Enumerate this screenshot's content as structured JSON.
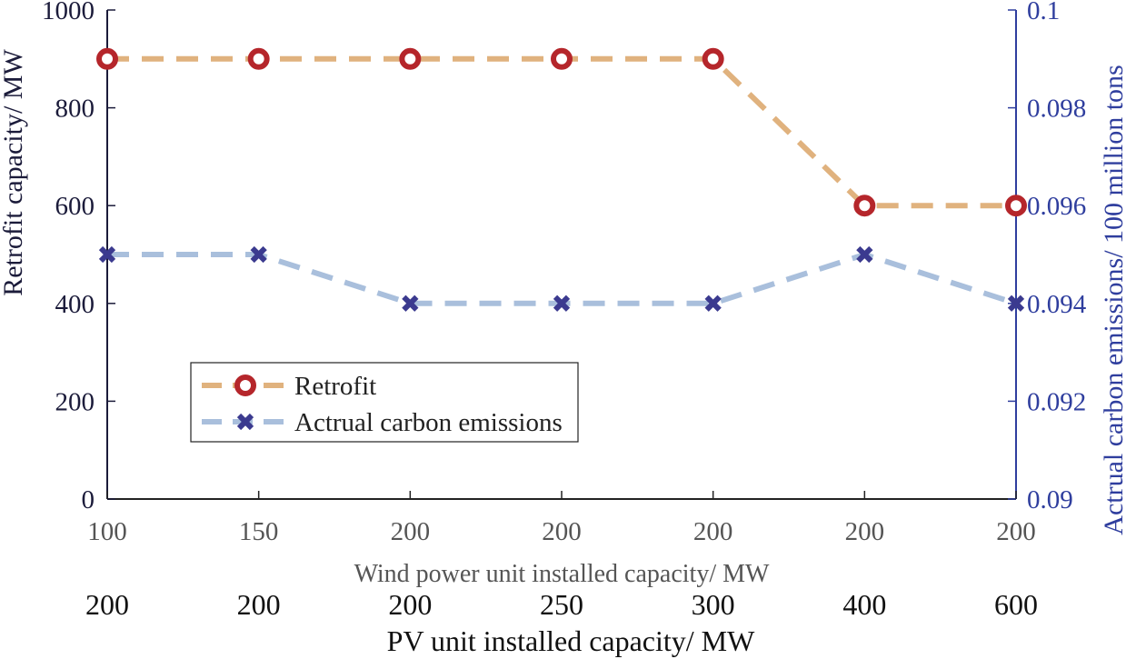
{
  "chart_data": {
    "type": "line",
    "categories_index": [
      1,
      2,
      3,
      4,
      5,
      6,
      7
    ],
    "x_axis_primary": {
      "label": "Wind power unit installed capacity/ MW",
      "ticks": [
        "100",
        "150",
        "200",
        "200",
        "200",
        "200",
        "200"
      ]
    },
    "x_axis_secondary": {
      "label": "PV unit installed capacity/ MW",
      "ticks": [
        "200",
        "200",
        "200",
        "250",
        "300",
        "400",
        "600"
      ]
    },
    "y_axis_left": {
      "label": "Retrofit capacity/ MW",
      "range": [
        0,
        1000
      ],
      "ticks": [
        "0",
        "200",
        "400",
        "600",
        "800",
        "1000"
      ],
      "tick_values": [
        0,
        200,
        400,
        600,
        800,
        1000
      ]
    },
    "y_axis_right": {
      "label": "Actrual carbon emissions/ 100 million tons",
      "range": [
        0.09,
        0.1
      ],
      "ticks": [
        "0.09",
        "0.092",
        "0.094",
        "0.096",
        "0.098",
        "0.1"
      ],
      "tick_values": [
        0.09,
        0.092,
        0.094,
        0.096,
        0.098,
        0.1
      ]
    },
    "series": [
      {
        "name": "Retrofit",
        "axis": "left",
        "marker": "circle",
        "values": [
          900,
          900,
          900,
          900,
          900,
          600,
          600
        ],
        "line_color": "#e0b27e",
        "marker_color": "#b5262b"
      },
      {
        "name": "Actrual carbon emissions",
        "axis": "right",
        "marker": "x",
        "values": [
          0.095,
          0.095,
          0.094,
          0.094,
          0.094,
          0.095,
          0.094
        ],
        "line_color": "#a9bfdc",
        "marker_color": "#3b3a8f"
      }
    ],
    "legend": {
      "position": "lower-left"
    },
    "colors": {
      "left_axis": "#1b1b3a",
      "right_axis": "#2f3e9e",
      "text": "#333333"
    }
  }
}
